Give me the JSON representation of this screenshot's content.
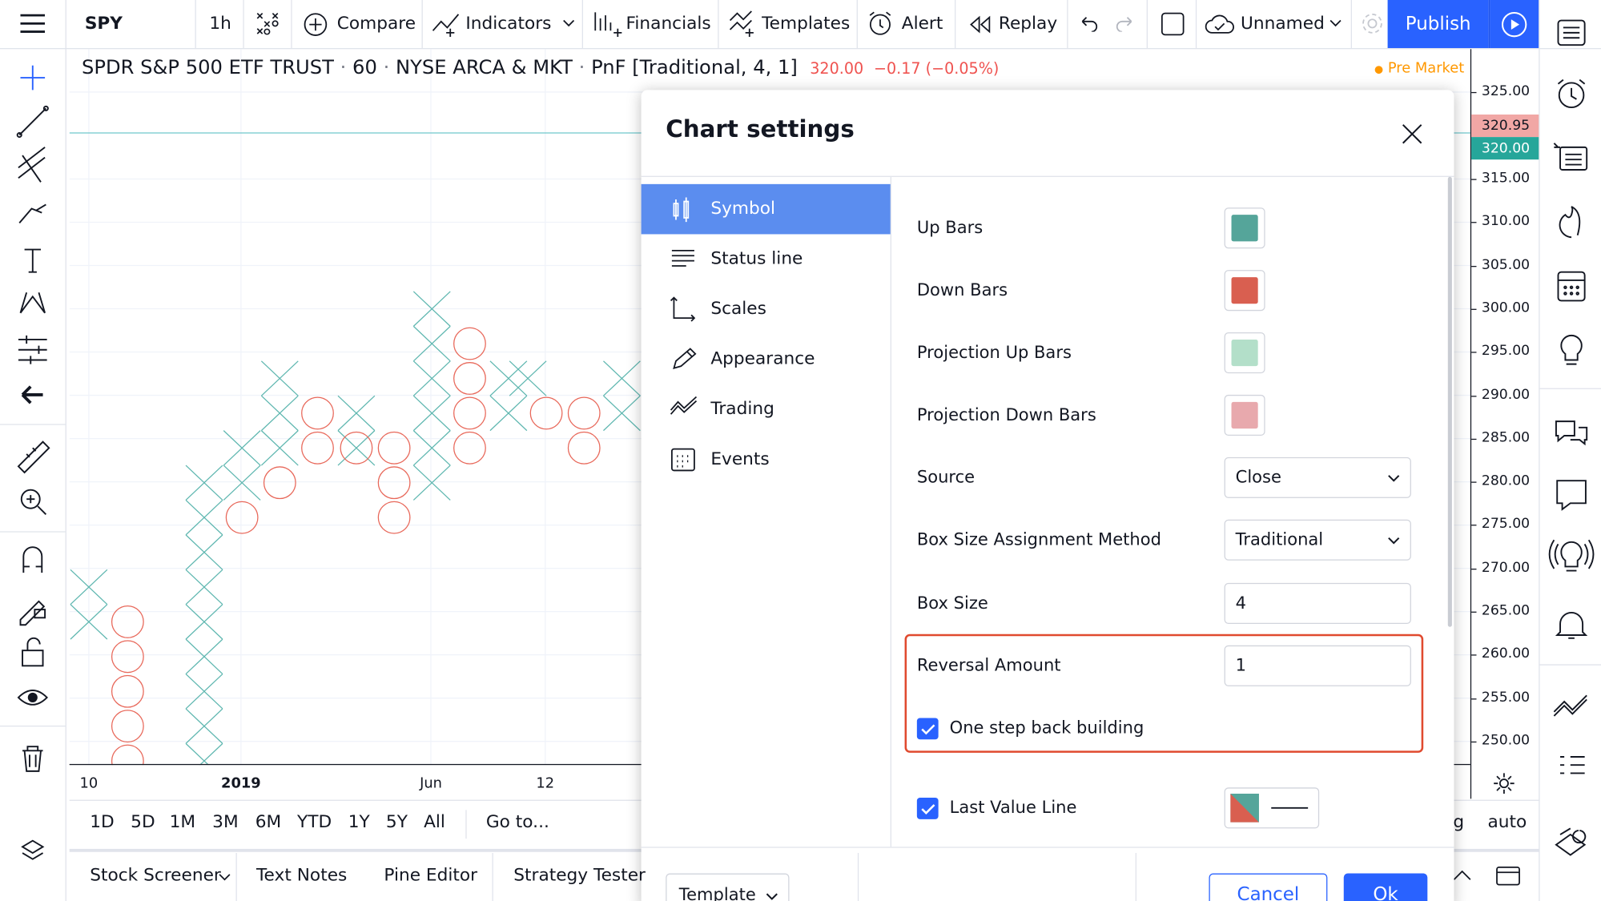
{
  "toolbar": {
    "symbol": "SPY",
    "interval": "1h",
    "compare": "Compare",
    "indicators": "Indicators",
    "financials": "Financials",
    "templates": "Templates",
    "alert": "Alert",
    "replay": "Replay",
    "layout_name": "Unnamed",
    "publish": "Publish"
  },
  "legend": {
    "symbol_name": "SPDR S&P 500 ETF TRUST",
    "interval": "60",
    "exchange": "NYSE ARCA & MKT",
    "chart_type": "PnF [Traditional, 4, 1]",
    "price": "320.00",
    "change": "−0.17 (−0.05%)",
    "session": "Pre Market"
  },
  "price_axis": {
    "labels": [
      "325.00",
      "315.00",
      "310.00",
      "305.00",
      "300.00",
      "295.00",
      "290.00",
      "285.00",
      "280.00",
      "275.00",
      "270.00",
      "265.00",
      "260.00",
      "255.00",
      "250.00"
    ],
    "last_price": "320.95",
    "close_price": "320.00"
  },
  "time_axis": [
    "10",
    "2019",
    "Jun",
    "12"
  ],
  "ranges": [
    "1D",
    "5D",
    "1M",
    "3M",
    "6M",
    "YTD",
    "1Y",
    "5Y",
    "All"
  ],
  "goto": "Go to...",
  "axis_options": [
    "log",
    "auto"
  ],
  "bottom_tabs": [
    "Stock Screener",
    "Text Notes",
    "Pine Editor",
    "Strategy Tester"
  ],
  "dialog": {
    "title": "Chart settings",
    "nav": [
      "Symbol",
      "Status line",
      "Scales",
      "Appearance",
      "Trading",
      "Events"
    ],
    "up_bars": {
      "label": "Up Bars",
      "color": "#55a59a"
    },
    "down_bars": {
      "label": "Down Bars",
      "color": "#d95f50"
    },
    "projection_up_bars": {
      "label": "Projection Up Bars",
      "color": "#b3dfc9"
    },
    "projection_down_bars": {
      "label": "Projection Down Bars",
      "color": "#e8a9ad"
    },
    "source": {
      "label": "Source",
      "value": "Close"
    },
    "box_size_method": {
      "label": "Box Size Assignment Method",
      "value": "Traditional"
    },
    "box_size": {
      "label": "Box Size",
      "value": "4"
    },
    "reversal_amount": {
      "label": "Reversal Amount",
      "value": "1"
    },
    "one_step_back": {
      "label": "One step back building",
      "checked": true
    },
    "last_value_line": {
      "label": "Last Value Line",
      "checked": true
    },
    "template": "Template",
    "cancel": "Cancel",
    "ok": "Ok"
  }
}
